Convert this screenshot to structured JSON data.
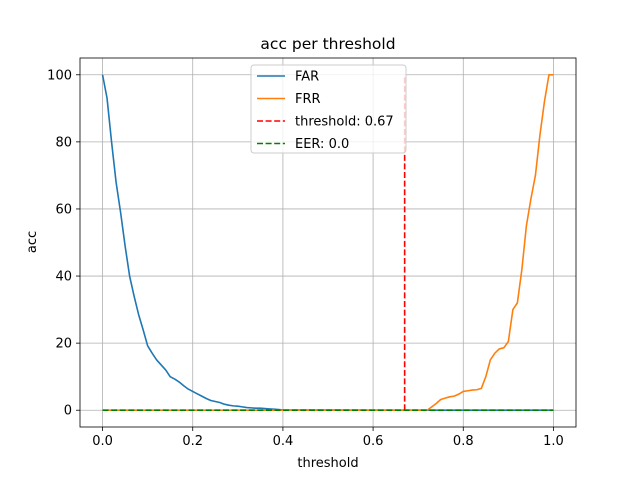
{
  "chart_data": {
    "type": "line",
    "title": "acc per threshold",
    "xlabel": "threshold",
    "ylabel": "acc",
    "xlim": [
      -0.05,
      1.05
    ],
    "ylim": [
      -5,
      105
    ],
    "xticks": [
      0.0,
      0.2,
      0.4,
      0.6,
      0.8,
      1.0
    ],
    "xtick_labels": [
      "0.0",
      "0.2",
      "0.4",
      "0.6",
      "0.8",
      "1.0"
    ],
    "yticks": [
      0,
      20,
      40,
      60,
      80,
      100
    ],
    "ytick_labels": [
      "0",
      "20",
      "40",
      "60",
      "80",
      "100"
    ],
    "grid": true,
    "legend_position": "top-center",
    "series": [
      {
        "name": "FAR",
        "color": "#1f77b4",
        "style": "solid",
        "x": [
          0.0,
          0.01,
          0.02,
          0.03,
          0.04,
          0.05,
          0.06,
          0.07,
          0.08,
          0.09,
          0.1,
          0.11,
          0.12,
          0.13,
          0.14,
          0.15,
          0.16,
          0.17,
          0.18,
          0.19,
          0.2,
          0.21,
          0.22,
          0.23,
          0.24,
          0.25,
          0.26,
          0.27,
          0.28,
          0.29,
          0.3,
          0.31,
          0.32,
          0.33,
          0.34,
          0.35,
          0.36,
          0.37,
          0.38,
          0.39,
          0.4,
          0.5,
          0.6,
          0.7,
          0.8,
          0.9,
          1.0
        ],
        "y": [
          100,
          93,
          80,
          68,
          59,
          49,
          40,
          34,
          28.5,
          24,
          19.2,
          17,
          15,
          13.5,
          12,
          10,
          9.3,
          8.4,
          7.3,
          6.3,
          5.6,
          4.9,
          4.2,
          3.5,
          2.9,
          2.6,
          2.3,
          1.8,
          1.5,
          1.3,
          1.2,
          1.0,
          0.8,
          0.7,
          0.6,
          0.6,
          0.5,
          0.4,
          0.3,
          0.2,
          0.1,
          0.05,
          0.02,
          0.01,
          0.0,
          0.0,
          0.0
        ]
      },
      {
        "name": "FRR",
        "color": "#ff7f0e",
        "style": "solid",
        "x": [
          0.0,
          0.1,
          0.2,
          0.3,
          0.4,
          0.5,
          0.6,
          0.7,
          0.72,
          0.73,
          0.74,
          0.75,
          0.76,
          0.77,
          0.78,
          0.79,
          0.8,
          0.81,
          0.82,
          0.83,
          0.84,
          0.85,
          0.86,
          0.87,
          0.88,
          0.89,
          0.9,
          0.91,
          0.92,
          0.93,
          0.94,
          0.95,
          0.96,
          0.97,
          0.98,
          0.99,
          1.0
        ],
        "y": [
          0,
          0,
          0,
          0,
          0,
          0,
          0,
          0,
          0,
          1,
          2,
          3.2,
          3.6,
          4,
          4.2,
          4.8,
          5.6,
          5.8,
          6,
          6.1,
          6.5,
          10,
          15,
          17,
          18.3,
          18.6,
          20.5,
          30,
          32,
          42,
          55,
          63,
          70,
          82,
          92,
          100,
          100
        ]
      },
      {
        "name": "threshold: 0.67",
        "color": "#ff0000",
        "style": "dashed",
        "x": [
          0.67,
          0.67
        ],
        "y": [
          0,
          100
        ]
      },
      {
        "name": "EER: 0.0",
        "color": "#008000",
        "style": "dashed",
        "x": [
          0.0,
          1.0
        ],
        "y": [
          0,
          0
        ]
      }
    ]
  }
}
